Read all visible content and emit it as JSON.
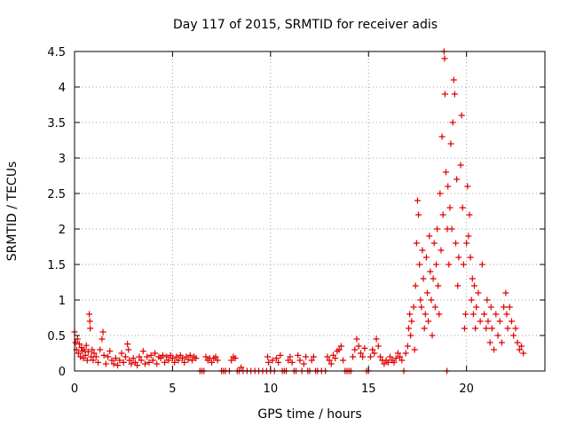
{
  "chart_data": {
    "type": "scatter",
    "title": "Day 117 of 2015, SRMTID for receiver adis",
    "xlabel": "GPS time / hours",
    "ylabel": "SRMTID / TECUs",
    "xlim": [
      0,
      24
    ],
    "ylim": [
      0,
      4.5
    ],
    "x_ticks": [
      0,
      5,
      10,
      15,
      20
    ],
    "x_tick_labels": [
      "0",
      "5",
      "10",
      "15",
      "20"
    ],
    "y_ticks": [
      0,
      0.5,
      1,
      1.5,
      2,
      2.5,
      3,
      3.5,
      4,
      4.5
    ],
    "y_tick_labels": [
      "0",
      "0.5",
      "1",
      "1.5",
      "2",
      "2.5",
      "3",
      "3.5",
      "4",
      "4.5"
    ],
    "grid": true,
    "marker": "+",
    "color": "#e00000",
    "series": [
      {
        "name": "SRMTID",
        "points": [
          [
            0.0,
            0.55
          ],
          [
            0.05,
            0.4
          ],
          [
            0.1,
            0.3
          ],
          [
            0.15,
            0.45
          ],
          [
            0.2,
            0.25
          ],
          [
            0.25,
            0.38
          ],
          [
            0.3,
            0.2
          ],
          [
            0.35,
            0.33
          ],
          [
            0.4,
            0.28
          ],
          [
            0.45,
            0.18
          ],
          [
            0.5,
            0.3
          ],
          [
            0.55,
            0.22
          ],
          [
            0.6,
            0.36
          ],
          [
            0.65,
            0.15
          ],
          [
            0.7,
            0.27
          ],
          [
            0.75,
            0.8
          ],
          [
            0.78,
            0.7
          ],
          [
            0.8,
            0.6
          ],
          [
            0.85,
            0.2
          ],
          [
            0.9,
            0.3
          ],
          [
            0.95,
            0.15
          ],
          [
            1.0,
            0.25
          ],
          [
            1.1,
            0.2
          ],
          [
            1.2,
            0.12
          ],
          [
            1.3,
            0.3
          ],
          [
            1.4,
            0.45
          ],
          [
            1.45,
            0.55
          ],
          [
            1.5,
            0.22
          ],
          [
            1.6,
            0.1
          ],
          [
            1.7,
            0.2
          ],
          [
            1.8,
            0.28
          ],
          [
            1.9,
            0.15
          ],
          [
            2.0,
            0.1
          ],
          [
            2.1,
            0.18
          ],
          [
            2.2,
            0.08
          ],
          [
            2.3,
            0.15
          ],
          [
            2.4,
            0.25
          ],
          [
            2.5,
            0.12
          ],
          [
            2.6,
            0.2
          ],
          [
            2.7,
            0.38
          ],
          [
            2.75,
            0.3
          ],
          [
            2.8,
            0.15
          ],
          [
            2.9,
            0.1
          ],
          [
            3.0,
            0.18
          ],
          [
            3.1,
            0.12
          ],
          [
            3.2,
            0.08
          ],
          [
            3.3,
            0.2
          ],
          [
            3.4,
            0.15
          ],
          [
            3.5,
            0.28
          ],
          [
            3.6,
            0.1
          ],
          [
            3.7,
            0.2
          ],
          [
            3.8,
            0.12
          ],
          [
            3.9,
            0.22
          ],
          [
            4.0,
            0.15
          ],
          [
            4.1,
            0.25
          ],
          [
            4.2,
            0.1
          ],
          [
            4.3,
            0.2
          ],
          [
            4.4,
            0.18
          ],
          [
            4.5,
            0.22
          ],
          [
            4.6,
            0.12
          ],
          [
            4.7,
            0.2
          ],
          [
            4.8,
            0.15
          ],
          [
            4.9,
            0.22
          ],
          [
            5.0,
            0.18
          ],
          [
            5.1,
            0.12
          ],
          [
            5.2,
            0.2
          ],
          [
            5.3,
            0.15
          ],
          [
            5.4,
            0.22
          ],
          [
            5.5,
            0.18
          ],
          [
            5.6,
            0.12
          ],
          [
            5.7,
            0.2
          ],
          [
            5.8,
            0.16
          ],
          [
            5.9,
            0.22
          ],
          [
            6.0,
            0.15
          ],
          [
            6.1,
            0.2
          ],
          [
            6.2,
            0.18
          ],
          [
            6.4,
            0.0
          ],
          [
            6.5,
            0.0
          ],
          [
            6.6,
            0.0
          ],
          [
            6.7,
            0.2
          ],
          [
            6.8,
            0.15
          ],
          [
            6.9,
            0.18
          ],
          [
            7.0,
            0.12
          ],
          [
            7.1,
            0.18
          ],
          [
            7.2,
            0.2
          ],
          [
            7.3,
            0.15
          ],
          [
            7.5,
            0.0
          ],
          [
            7.6,
            0.0
          ],
          [
            7.7,
            0.0
          ],
          [
            7.9,
            0.0
          ],
          [
            8.0,
            0.15
          ],
          [
            8.1,
            0.2
          ],
          [
            8.2,
            0.18
          ],
          [
            8.3,
            0.0
          ],
          [
            8.4,
            0.0
          ],
          [
            8.5,
            0.05
          ],
          [
            8.6,
            0.0
          ],
          [
            8.8,
            0.0
          ],
          [
            9.0,
            0.0
          ],
          [
            9.2,
            0.0
          ],
          [
            9.4,
            0.0
          ],
          [
            9.6,
            0.0
          ],
          [
            9.8,
            0.0
          ],
          [
            9.85,
            0.2
          ],
          [
            9.9,
            0.12
          ],
          [
            10.0,
            0.0
          ],
          [
            10.1,
            0.15
          ],
          [
            10.2,
            0.0
          ],
          [
            10.3,
            0.18
          ],
          [
            10.4,
            0.12
          ],
          [
            10.5,
            0.22
          ],
          [
            10.6,
            0.0
          ],
          [
            10.7,
            0.0
          ],
          [
            10.8,
            0.0
          ],
          [
            10.9,
            0.15
          ],
          [
            11.0,
            0.2
          ],
          [
            11.1,
            0.12
          ],
          [
            11.2,
            0.0
          ],
          [
            11.3,
            0.0
          ],
          [
            11.4,
            0.22
          ],
          [
            11.5,
            0.15
          ],
          [
            11.6,
            0.0
          ],
          [
            11.7,
            0.1
          ],
          [
            11.8,
            0.2
          ],
          [
            11.9,
            0.0
          ],
          [
            12.0,
            0.0
          ],
          [
            12.1,
            0.15
          ],
          [
            12.2,
            0.2
          ],
          [
            12.3,
            0.0
          ],
          [
            12.4,
            0.0
          ],
          [
            12.6,
            0.0
          ],
          [
            12.8,
            0.0
          ],
          [
            12.9,
            0.2
          ],
          [
            13.0,
            0.15
          ],
          [
            13.1,
            0.1
          ],
          [
            13.2,
            0.22
          ],
          [
            13.3,
            0.18
          ],
          [
            13.4,
            0.28
          ],
          [
            13.5,
            0.3
          ],
          [
            13.6,
            0.35
          ],
          [
            13.7,
            0.15
          ],
          [
            13.8,
            0.0
          ],
          [
            13.9,
            0.0
          ],
          [
            14.0,
            0.0
          ],
          [
            14.1,
            0.0
          ],
          [
            14.2,
            0.2
          ],
          [
            14.3,
            0.3
          ],
          [
            14.4,
            0.45
          ],
          [
            14.5,
            0.35
          ],
          [
            14.6,
            0.25
          ],
          [
            14.7,
            0.2
          ],
          [
            14.8,
            0.32
          ],
          [
            14.9,
            0.0
          ],
          [
            15.0,
            0.0
          ],
          [
            15.1,
            0.2
          ],
          [
            15.2,
            0.3
          ],
          [
            15.3,
            0.25
          ],
          [
            15.4,
            0.45
          ],
          [
            15.5,
            0.35
          ],
          [
            15.6,
            0.2
          ],
          [
            15.7,
            0.15
          ],
          [
            15.8,
            0.1
          ],
          [
            15.9,
            0.15
          ],
          [
            16.0,
            0.12
          ],
          [
            16.1,
            0.2
          ],
          [
            16.2,
            0.15
          ],
          [
            16.3,
            0.12
          ],
          [
            16.4,
            0.18
          ],
          [
            16.5,
            0.25
          ],
          [
            16.6,
            0.2
          ],
          [
            16.7,
            0.15
          ],
          [
            16.8,
            0.0
          ],
          [
            16.9,
            0.25
          ],
          [
            17.0,
            0.35
          ],
          [
            17.05,
            0.6
          ],
          [
            17.1,
            0.8
          ],
          [
            17.15,
            0.5
          ],
          [
            17.2,
            0.7
          ],
          [
            17.3,
            0.9
          ],
          [
            17.35,
            0.3
          ],
          [
            17.4,
            1.2
          ],
          [
            17.45,
            1.8
          ],
          [
            17.5,
            2.4
          ],
          [
            17.55,
            2.2
          ],
          [
            17.6,
            1.5
          ],
          [
            17.65,
            1.0
          ],
          [
            17.7,
            0.9
          ],
          [
            17.75,
            1.7
          ],
          [
            17.8,
            1.3
          ],
          [
            17.85,
            0.6
          ],
          [
            17.9,
            0.8
          ],
          [
            17.95,
            1.6
          ],
          [
            18.0,
            1.1
          ],
          [
            18.05,
            0.7
          ],
          [
            18.1,
            1.9
          ],
          [
            18.15,
            1.4
          ],
          [
            18.2,
            1.0
          ],
          [
            18.25,
            0.5
          ],
          [
            18.3,
            1.3
          ],
          [
            18.35,
            1.8
          ],
          [
            18.4,
            0.9
          ],
          [
            18.45,
            1.5
          ],
          [
            18.5,
            2.0
          ],
          [
            18.55,
            1.2
          ],
          [
            18.6,
            0.8
          ],
          [
            18.65,
            2.5
          ],
          [
            18.7,
            1.7
          ],
          [
            18.75,
            3.3
          ],
          [
            18.8,
            2.2
          ],
          [
            18.85,
            4.5
          ],
          [
            18.88,
            4.4
          ],
          [
            18.9,
            3.9
          ],
          [
            18.95,
            2.8
          ],
          [
            19.0,
            0.0
          ],
          [
            19.02,
            2.0
          ],
          [
            19.05,
            2.6
          ],
          [
            19.1,
            1.5
          ],
          [
            19.15,
            2.3
          ],
          [
            19.2,
            3.2
          ],
          [
            19.25,
            2.0
          ],
          [
            19.3,
            3.5
          ],
          [
            19.35,
            4.1
          ],
          [
            19.4,
            3.9
          ],
          [
            19.45,
            1.8
          ],
          [
            19.5,
            2.7
          ],
          [
            19.55,
            1.2
          ],
          [
            19.6,
            1.6
          ],
          [
            19.7,
            2.9
          ],
          [
            19.75,
            3.6
          ],
          [
            19.8,
            2.3
          ],
          [
            19.85,
            1.5
          ],
          [
            19.9,
            0.6
          ],
          [
            19.95,
            0.8
          ],
          [
            20.0,
            1.8
          ],
          [
            20.05,
            2.6
          ],
          [
            20.1,
            1.9
          ],
          [
            20.15,
            2.2
          ],
          [
            20.2,
            1.6
          ],
          [
            20.25,
            1.0
          ],
          [
            20.3,
            1.3
          ],
          [
            20.35,
            0.8
          ],
          [
            20.4,
            1.2
          ],
          [
            20.45,
            0.6
          ],
          [
            20.5,
            0.9
          ],
          [
            20.6,
            1.1
          ],
          [
            20.7,
            0.7
          ],
          [
            20.8,
            1.5
          ],
          [
            20.9,
            0.8
          ],
          [
            21.0,
            0.6
          ],
          [
            21.05,
            1.0
          ],
          [
            21.1,
            0.7
          ],
          [
            21.2,
            0.4
          ],
          [
            21.25,
            0.9
          ],
          [
            21.3,
            0.6
          ],
          [
            21.4,
            0.3
          ],
          [
            21.5,
            0.8
          ],
          [
            21.6,
            0.5
          ],
          [
            21.7,
            0.7
          ],
          [
            21.8,
            0.4
          ],
          [
            21.9,
            0.9
          ],
          [
            22.0,
            1.1
          ],
          [
            22.05,
            0.8
          ],
          [
            22.1,
            0.6
          ],
          [
            22.2,
            0.9
          ],
          [
            22.3,
            0.7
          ],
          [
            22.4,
            0.5
          ],
          [
            22.5,
            0.6
          ],
          [
            22.6,
            0.4
          ],
          [
            22.7,
            0.3
          ],
          [
            22.8,
            0.35
          ],
          [
            22.9,
            0.25
          ]
        ]
      }
    ]
  }
}
